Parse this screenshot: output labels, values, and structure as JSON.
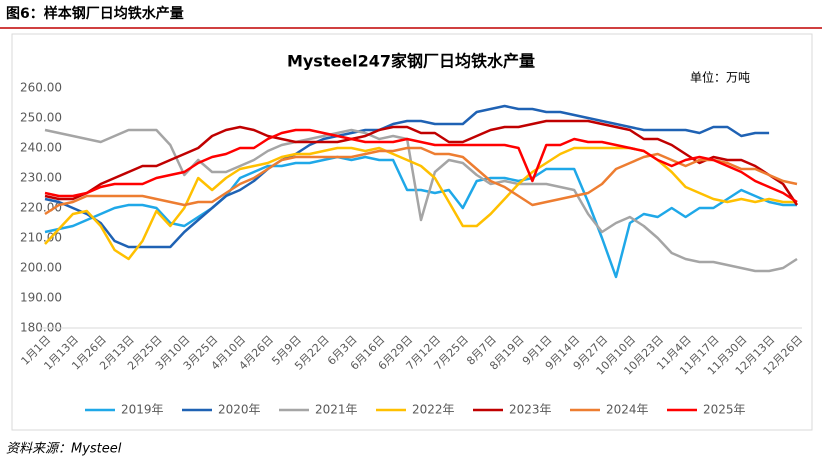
{
  "header": {
    "title": "图6：样本钢厂日均铁水产量",
    "source": "资料来源：Mysteel"
  },
  "chart_data": {
    "type": "line",
    "title": "Mysteel247家钢厂日均铁水产量",
    "unit": "单位：万吨",
    "categories": [
      "1月1日",
      null,
      "1月13日",
      null,
      "1月26日",
      null,
      "2月13日",
      null,
      "2月25日",
      null,
      "3月10日",
      null,
      "3月25日",
      null,
      "4月10日",
      null,
      "4月26日",
      null,
      "5月9日",
      null,
      "5月22日",
      null,
      "6月3日",
      null,
      "6月16日",
      null,
      "6月29日",
      null,
      "7月12日",
      null,
      "7月25日",
      null,
      "8月7日",
      null,
      "8月19日",
      null,
      "9月1日",
      null,
      "9月14日",
      null,
      "9月27日",
      null,
      "10月10日",
      null,
      "10月23日",
      null,
      "11月4日",
      null,
      "11月17日",
      null,
      "11月30日",
      null,
      "12月13日",
      null,
      "12月26日"
    ],
    "ylim": [
      180,
      260
    ],
    "yticks": [
      {
        "value": 180,
        "label": "180.00"
      },
      {
        "value": 190,
        "label": "190.00"
      },
      {
        "value": 200,
        "label": "200.00"
      },
      {
        "value": 210,
        "label": "210.00"
      },
      {
        "value": 220,
        "label": "220.00"
      },
      {
        "value": 230,
        "label": "230.00"
      },
      {
        "value": 240,
        "label": "240.00"
      },
      {
        "value": 250,
        "label": "250.00"
      },
      {
        "value": 260,
        "label": "260.00"
      }
    ],
    "series": [
      {
        "name": "2019年",
        "color": "#1fa8e8",
        "values": [
          212,
          213,
          214,
          216,
          218,
          220,
          221,
          221,
          220,
          215,
          214,
          217,
          220,
          224,
          230,
          232,
          234,
          234,
          235,
          235,
          236,
          237,
          236,
          237,
          236,
          236,
          226,
          226,
          225,
          226,
          220,
          229,
          230,
          230,
          229,
          230,
          233,
          233,
          233,
          222,
          210,
          197,
          215,
          218,
          217,
          220,
          217,
          220,
          220,
          223,
          226,
          224,
          222,
          221,
          221
        ]
      },
      {
        "name": "2020年",
        "color": "#1f62b4",
        "values": [
          223,
          222,
          220,
          218,
          215,
          209,
          207,
          207,
          207,
          207,
          212,
          216,
          220,
          224,
          226,
          229,
          233,
          236,
          238,
          241,
          243,
          244,
          245,
          246,
          246,
          248,
          249,
          249,
          248,
          248,
          248,
          252,
          253,
          254,
          253,
          253,
          252,
          252,
          251,
          250,
          249,
          248,
          247,
          246,
          246,
          246,
          246,
          245,
          247,
          247,
          244,
          245,
          245,
          null,
          null
        ]
      },
      {
        "name": "2021年",
        "color": "#a5a5a5",
        "values": [
          246,
          245,
          244,
          243,
          242,
          244,
          246,
          246,
          246,
          241,
          231,
          236,
          232,
          232,
          234,
          236,
          239,
          241,
          242,
          243,
          244,
          245,
          246,
          245,
          243,
          244,
          243,
          216,
          232,
          236,
          235,
          231,
          228,
          229,
          228,
          228,
          228,
          227,
          226,
          218,
          212,
          215,
          217,
          214,
          210,
          205,
          203,
          202,
          202,
          201,
          200,
          199,
          199,
          200,
          203
        ]
      },
      {
        "name": "2022年",
        "color": "#ffc000",
        "values": [
          208,
          213,
          218,
          219,
          214,
          206,
          203,
          209,
          219,
          214,
          220,
          230,
          226,
          230,
          233,
          234,
          235,
          237,
          238,
          238,
          239,
          240,
          240,
          239,
          240,
          238,
          236,
          234,
          230,
          222,
          214,
          214,
          218,
          223,
          228,
          232,
          235,
          238,
          240,
          240,
          240,
          240,
          240,
          239,
          236,
          232,
          227,
          225,
          223,
          222,
          223,
          222,
          223,
          222,
          222
        ]
      },
      {
        "name": "2023年",
        "color": "#c00000",
        "values": [
          224,
          223,
          223,
          225,
          228,
          230,
          232,
          234,
          234,
          236,
          238,
          240,
          244,
          246,
          247,
          246,
          244,
          243,
          242,
          242,
          242,
          242,
          243,
          244,
          246,
          247,
          247,
          245,
          245,
          242,
          242,
          244,
          246,
          247,
          247,
          248,
          249,
          249,
          249,
          249,
          248,
          247,
          246,
          243,
          243,
          241,
          238,
          235,
          237,
          236,
          236,
          234,
          231,
          228,
          221
        ]
      },
      {
        "name": "2024年",
        "color": "#ed7d31",
        "values": [
          218,
          221,
          222,
          224,
          224,
          224,
          224,
          224,
          223,
          222,
          221,
          222,
          222,
          225,
          228,
          230,
          233,
          236,
          237,
          237,
          237,
          237,
          237,
          238,
          239,
          239,
          240,
          240,
          238,
          238,
          237,
          233,
          229,
          227,
          224,
          221,
          222,
          223,
          224,
          225,
          228,
          233,
          235,
          237,
          238,
          236,
          234,
          236,
          236,
          235,
          233,
          233,
          231,
          229,
          228
        ]
      },
      {
        "name": "2025年",
        "color": "#ff0000",
        "values": [
          225,
          224,
          224,
          225,
          227,
          228,
          228,
          228,
          230,
          231,
          232,
          235,
          237,
          238,
          240,
          240,
          243,
          245,
          246,
          246,
          245,
          244,
          243,
          242,
          242,
          242,
          243,
          242,
          241,
          241,
          241,
          241,
          241,
          241,
          240,
          229,
          241,
          241,
          243,
          242,
          242,
          241,
          240,
          239,
          236,
          234,
          236,
          237,
          236,
          234,
          232,
          229,
          227,
          225,
          222
        ]
      }
    ]
  }
}
